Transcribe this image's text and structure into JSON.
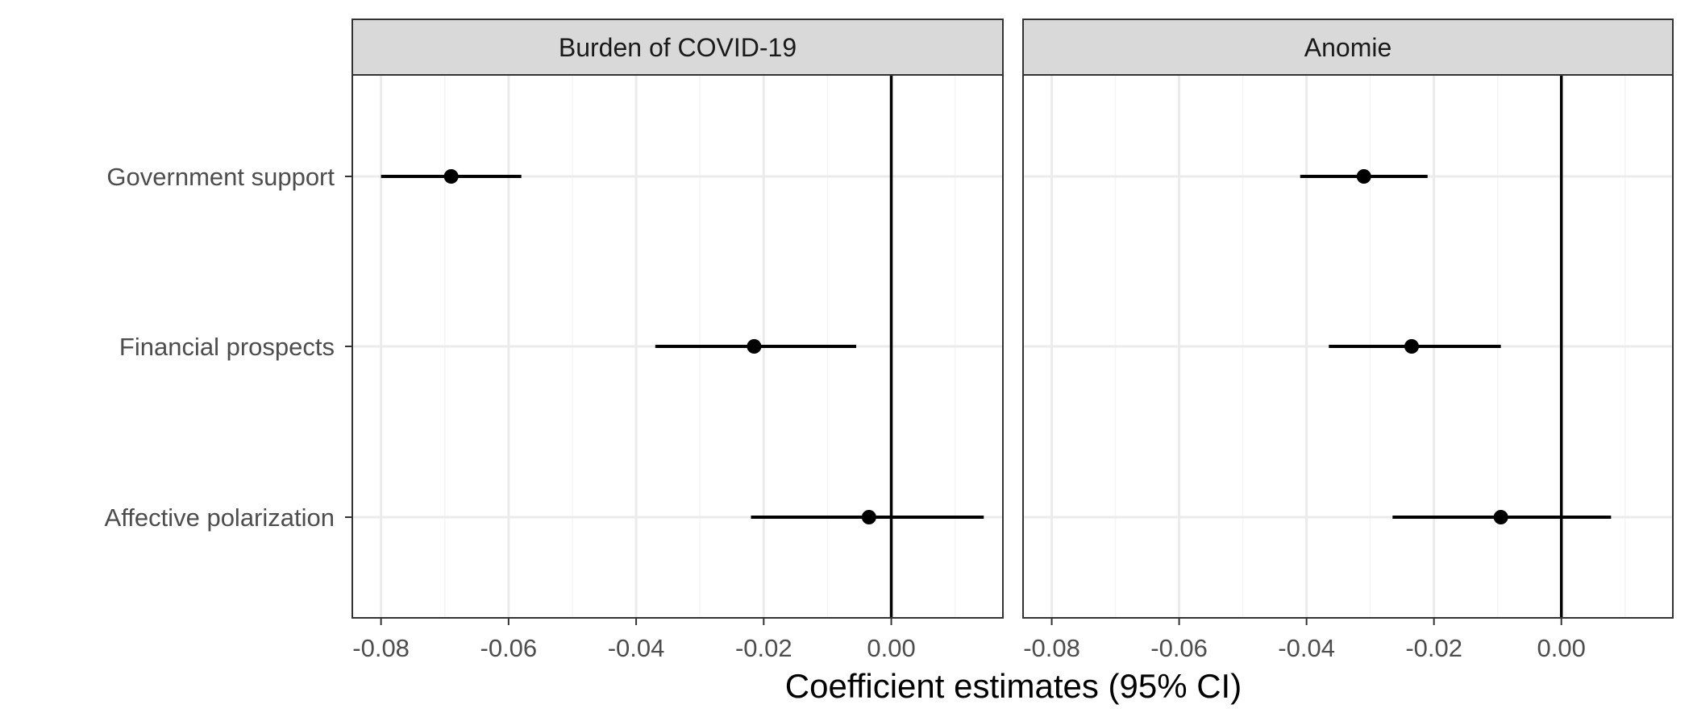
{
  "chart_data": {
    "type": "scatter",
    "subtype": "coefficient-plot",
    "xlabel": "Coefficient estimates (95% CI)",
    "ylabel": "",
    "categories": [
      "Government support",
      "Financial prospects",
      "Affective polarization"
    ],
    "xlim": [
      -0.0845,
      0.0175
    ],
    "x_ticks": [
      -0.08,
      -0.06,
      -0.04,
      -0.02,
      0.0
    ],
    "x_tick_labels": [
      "-0.08",
      "-0.06",
      "-0.04",
      "-0.02",
      "0.00"
    ],
    "reference_line": 0,
    "grid": true,
    "panels": [
      {
        "title": "Burden of COVID-19",
        "points": [
          {
            "category": "Government support",
            "estimate": -0.069,
            "ci_low": -0.08,
            "ci_high": -0.058
          },
          {
            "category": "Financial prospects",
            "estimate": -0.0215,
            "ci_low": -0.037,
            "ci_high": -0.0055
          },
          {
            "category": "Affective polarization",
            "estimate": -0.0035,
            "ci_low": -0.022,
            "ci_high": 0.0145
          }
        ]
      },
      {
        "title": "Anomie",
        "points": [
          {
            "category": "Government support",
            "estimate": -0.031,
            "ci_low": -0.041,
            "ci_high": -0.021
          },
          {
            "category": "Financial prospects",
            "estimate": -0.0235,
            "ci_low": -0.0365,
            "ci_high": -0.0095
          },
          {
            "category": "Affective polarization",
            "estimate": -0.0095,
            "ci_low": -0.0265,
            "ci_high": 0.0078
          }
        ]
      }
    ],
    "colors": {
      "point": "#000000",
      "strip_fill": "#d9d9d9",
      "grid_major": "#ebebeb",
      "grid_minor": "#f5f5f5",
      "border": "#333333",
      "tick_text": "#4d4d4d"
    }
  }
}
